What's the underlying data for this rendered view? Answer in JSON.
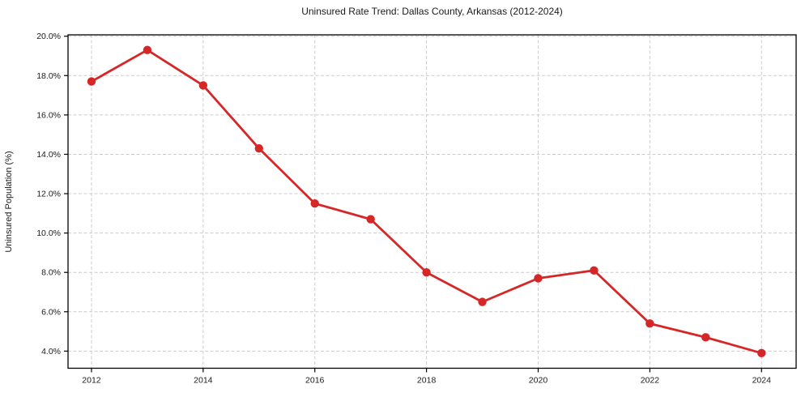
{
  "figure": {
    "background": "#ffffff"
  },
  "chart_data": {
    "type": "line",
    "title": "Uninsured Rate Trend: Dallas County, Arkansas (2012-2024)",
    "xlabel": "",
    "ylabel": "Uninsured Population (%)",
    "x": [
      2012,
      2013,
      2014,
      2015,
      2016,
      2017,
      2018,
      2019,
      2020,
      2021,
      2022,
      2023,
      2024
    ],
    "series": [
      {
        "values": [
          17.7,
          19.3,
          17.5,
          14.3,
          11.5,
          10.7,
          8.0,
          6.5,
          7.7,
          8.1,
          5.4,
          4.7,
          3.9
        ],
        "color": "#d62728",
        "marker": "circle"
      }
    ],
    "xlim": [
      2011.58,
      2024.62
    ],
    "ylim": [
      3.13,
      20.07
    ],
    "yticks": [
      4,
      6,
      8,
      10,
      12,
      14,
      16,
      18,
      20
    ],
    "ytick_labels": [
      "4.0%",
      "6.0%",
      "8.0%",
      "10.0%",
      "12.0%",
      "14.0%",
      "16.0%",
      "18.0%",
      "20.0%"
    ],
    "xticks": [
      2012,
      2014,
      2016,
      2018,
      2020,
      2022,
      2024
    ],
    "xtick_labels": [
      "2012",
      "2014",
      "2016",
      "2018",
      "2020",
      "2022",
      "2024"
    ],
    "grid": true,
    "grid_style": "dashed",
    "grid_color": "#cccccc",
    "spine_color": "#000000",
    "legend_position": "none"
  }
}
